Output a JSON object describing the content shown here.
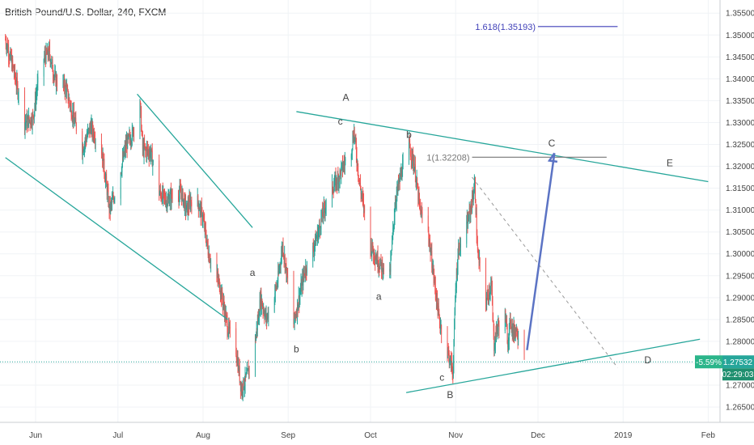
{
  "chart_data": {
    "type": "candlestick",
    "title": "British Pound/U.S. Dollar, 240, FXCM",
    "colors": {
      "up": "#26a69a",
      "down": "#ef5350",
      "trend": "#26a69a",
      "fib_e": "#3f3fb8",
      "fib_c": "#777777",
      "arrow": "#5b73c4",
      "badge_change": "#2bb58a",
      "badge_price": "#26a69a",
      "badge_timer": "#1f8f6f"
    },
    "y_ticks": [
      "1.35500",
      "1.35000",
      "1.34500",
      "1.34000",
      "1.33500",
      "1.33000",
      "1.32500",
      "1.32000",
      "1.31500",
      "1.31000",
      "1.30500",
      "1.30000",
      "1.29500",
      "1.29000",
      "1.28500",
      "1.28000",
      "1.27500",
      "1.27000",
      "1.26500"
    ],
    "x_ticks": [
      "Jun",
      "Jul",
      "Aug",
      "Sep",
      "Oct",
      "Nov",
      "Dec",
      "2019",
      "Feb"
    ],
    "y_range": [
      1.2615,
      1.358
    ],
    "price_series": [
      [
        "May 21",
        1.349
      ],
      [
        "May 24",
        1.342
      ],
      [
        "May 28",
        1.33
      ],
      [
        "May 31",
        1.331
      ],
      [
        "Jun 3",
        1.344
      ],
      [
        "Jun 6",
        1.346
      ],
      [
        "Jun 8",
        1.34
      ],
      [
        "Jun 12",
        1.338
      ],
      [
        "Jun 14",
        1.333
      ],
      [
        "Jun 18",
        1.324
      ],
      [
        "Jun 21",
        1.329
      ],
      [
        "Jun 25",
        1.324
      ],
      [
        "Jun 28",
        1.31
      ],
      [
        "Jul 1",
        1.316
      ],
      [
        "Jul 4",
        1.325
      ],
      [
        "Jul 6",
        1.327
      ],
      [
        "Jul 9",
        1.335
      ],
      [
        "Jul 10",
        1.324
      ],
      [
        "Jul 13",
        1.323
      ],
      [
        "Jul 16",
        1.314
      ],
      [
        "Jul 19",
        1.312
      ],
      [
        "Jul 20",
        1.313
      ],
      [
        "Jul 24",
        1.314
      ],
      [
        "Jul 26",
        1.31
      ],
      [
        "Jul 29",
        1.314
      ],
      [
        "Aug 1",
        1.308
      ],
      [
        "Aug 3",
        1.3
      ],
      [
        "Aug 7",
        1.293
      ],
      [
        "Aug 10",
        1.283
      ],
      [
        "Aug 13",
        1.278
      ],
      [
        "Aug 15",
        1.269
      ],
      [
        "Aug 17",
        1.272
      ],
      [
        "Aug 20",
        1.28
      ],
      [
        "Aug 22",
        1.29
      ],
      [
        "Aug 24",
        1.285
      ],
      [
        "Aug 28",
        1.293
      ],
      [
        "Aug 30",
        1.302
      ],
      [
        "Sep 3",
        1.284
      ],
      [
        "Sep 5",
        1.29
      ],
      [
        "Sep 7",
        1.296
      ],
      [
        "Sep 10",
        1.301
      ],
      [
        "Sep 12",
        1.305
      ],
      [
        "Sep 14",
        1.31
      ],
      [
        "Sep 17",
        1.315
      ],
      [
        "Sep 19",
        1.317
      ],
      [
        "Sep 21",
        1.32
      ],
      [
        "Sep 24",
        1.324
      ],
      [
        "Sep 25",
        1.328
      ],
      [
        "Sep 27",
        1.316
      ],
      [
        "Oct 1",
        1.302
      ],
      [
        "Oct 4",
        1.298
      ],
      [
        "Oct 8",
        1.295
      ],
      [
        "Oct 10",
        1.312
      ],
      [
        "Oct 12",
        1.318
      ],
      [
        "Oct 15",
        1.325
      ],
      [
        "Oct 17",
        1.32
      ],
      [
        "Oct 19",
        1.31
      ],
      [
        "Oct 22",
        1.305
      ],
      [
        "Oct 24",
        1.295
      ],
      [
        "Oct 26",
        1.285
      ],
      [
        "Oct 29",
        1.278
      ],
      [
        "Oct 31",
        1.273
      ],
      [
        "Nov 1",
        1.292
      ],
      [
        "Nov 2",
        1.301
      ],
      [
        "Nov 5",
        1.306
      ],
      [
        "Nov 7",
        1.312
      ],
      [
        "Nov 8",
        1.316
      ],
      [
        "Nov 9",
        1.3
      ],
      [
        "Nov 12",
        1.289
      ],
      [
        "Nov 14",
        1.293
      ],
      [
        "Nov 15",
        1.279
      ],
      [
        "Nov 16",
        1.283
      ],
      [
        "Nov 19",
        1.286
      ],
      [
        "Nov 20",
        1.28
      ],
      [
        "Nov 21",
        1.285
      ],
      [
        "Nov 22",
        1.282
      ],
      [
        "Nov 23",
        1.283
      ],
      [
        "Nov 26",
        1.278
      ]
    ],
    "trendlines": [
      {
        "name": "left-channel-lower",
        "from": [
          "May 21",
          1.322
        ],
        "to": [
          "Aug 10",
          1.285
        ]
      },
      {
        "name": "left-channel-upper",
        "from": [
          "Jul 8",
          1.3365
        ],
        "to": [
          "Aug 19",
          1.306
        ]
      },
      {
        "name": "triangle-upper",
        "from": [
          "Sep 4",
          1.3325
        ],
        "to": [
          "Feb 1",
          1.3165
        ]
      },
      {
        "name": "triangle-lower",
        "from": [
          "Oct 14",
          1.2683
        ],
        "to": [
          "Jan 29",
          1.2805
        ]
      }
    ],
    "dashed_line": {
      "from": [
        "Nov 7",
        1.3175
      ],
      "to": [
        "Dec 30",
        1.274
      ]
    },
    "arrow": {
      "from": [
        "Nov 27",
        1.278
      ],
      "to": [
        "Dec 7",
        1.323
      ]
    },
    "fib_levels": [
      {
        "label": "1.618(1.35193)",
        "value": 1.35193,
        "from": "Dec 1",
        "to": "Dec 30"
      },
      {
        "label": "1(1.32208)",
        "value": 1.32208,
        "from": "Nov 7",
        "to": "Dec 26"
      }
    ],
    "wave_labels": [
      {
        "text": "A",
        "at": [
          "Sep 22",
          1.335
        ]
      },
      {
        "text": "c",
        "at": [
          "Sep 20",
          1.3295
        ]
      },
      {
        "text": "b",
        "at": [
          "Oct 15",
          1.3265
        ]
      },
      {
        "text": "a",
        "at": [
          "Aug 19",
          1.295
        ]
      },
      {
        "text": "a",
        "at": [
          "Oct 4",
          1.2895
        ]
      },
      {
        "text": "b",
        "at": [
          "Sep 4",
          1.2775
        ]
      },
      {
        "text": "c",
        "at": [
          "Oct 27",
          1.271
        ]
      },
      {
        "text": "B",
        "at": [
          "Oct 30",
          1.267
        ]
      },
      {
        "text": "C",
        "at": [
          "Dec 6",
          1.3245
        ]
      },
      {
        "text": "E",
        "at": [
          "Jan 18",
          1.32
        ]
      },
      {
        "text": "D",
        "at": [
          "Jan 10",
          1.275
        ]
      }
    ],
    "current_price_line": 1.27532,
    "badges": {
      "change": "-5.59%",
      "price": "1.27532",
      "timer": "02:29:03"
    }
  }
}
